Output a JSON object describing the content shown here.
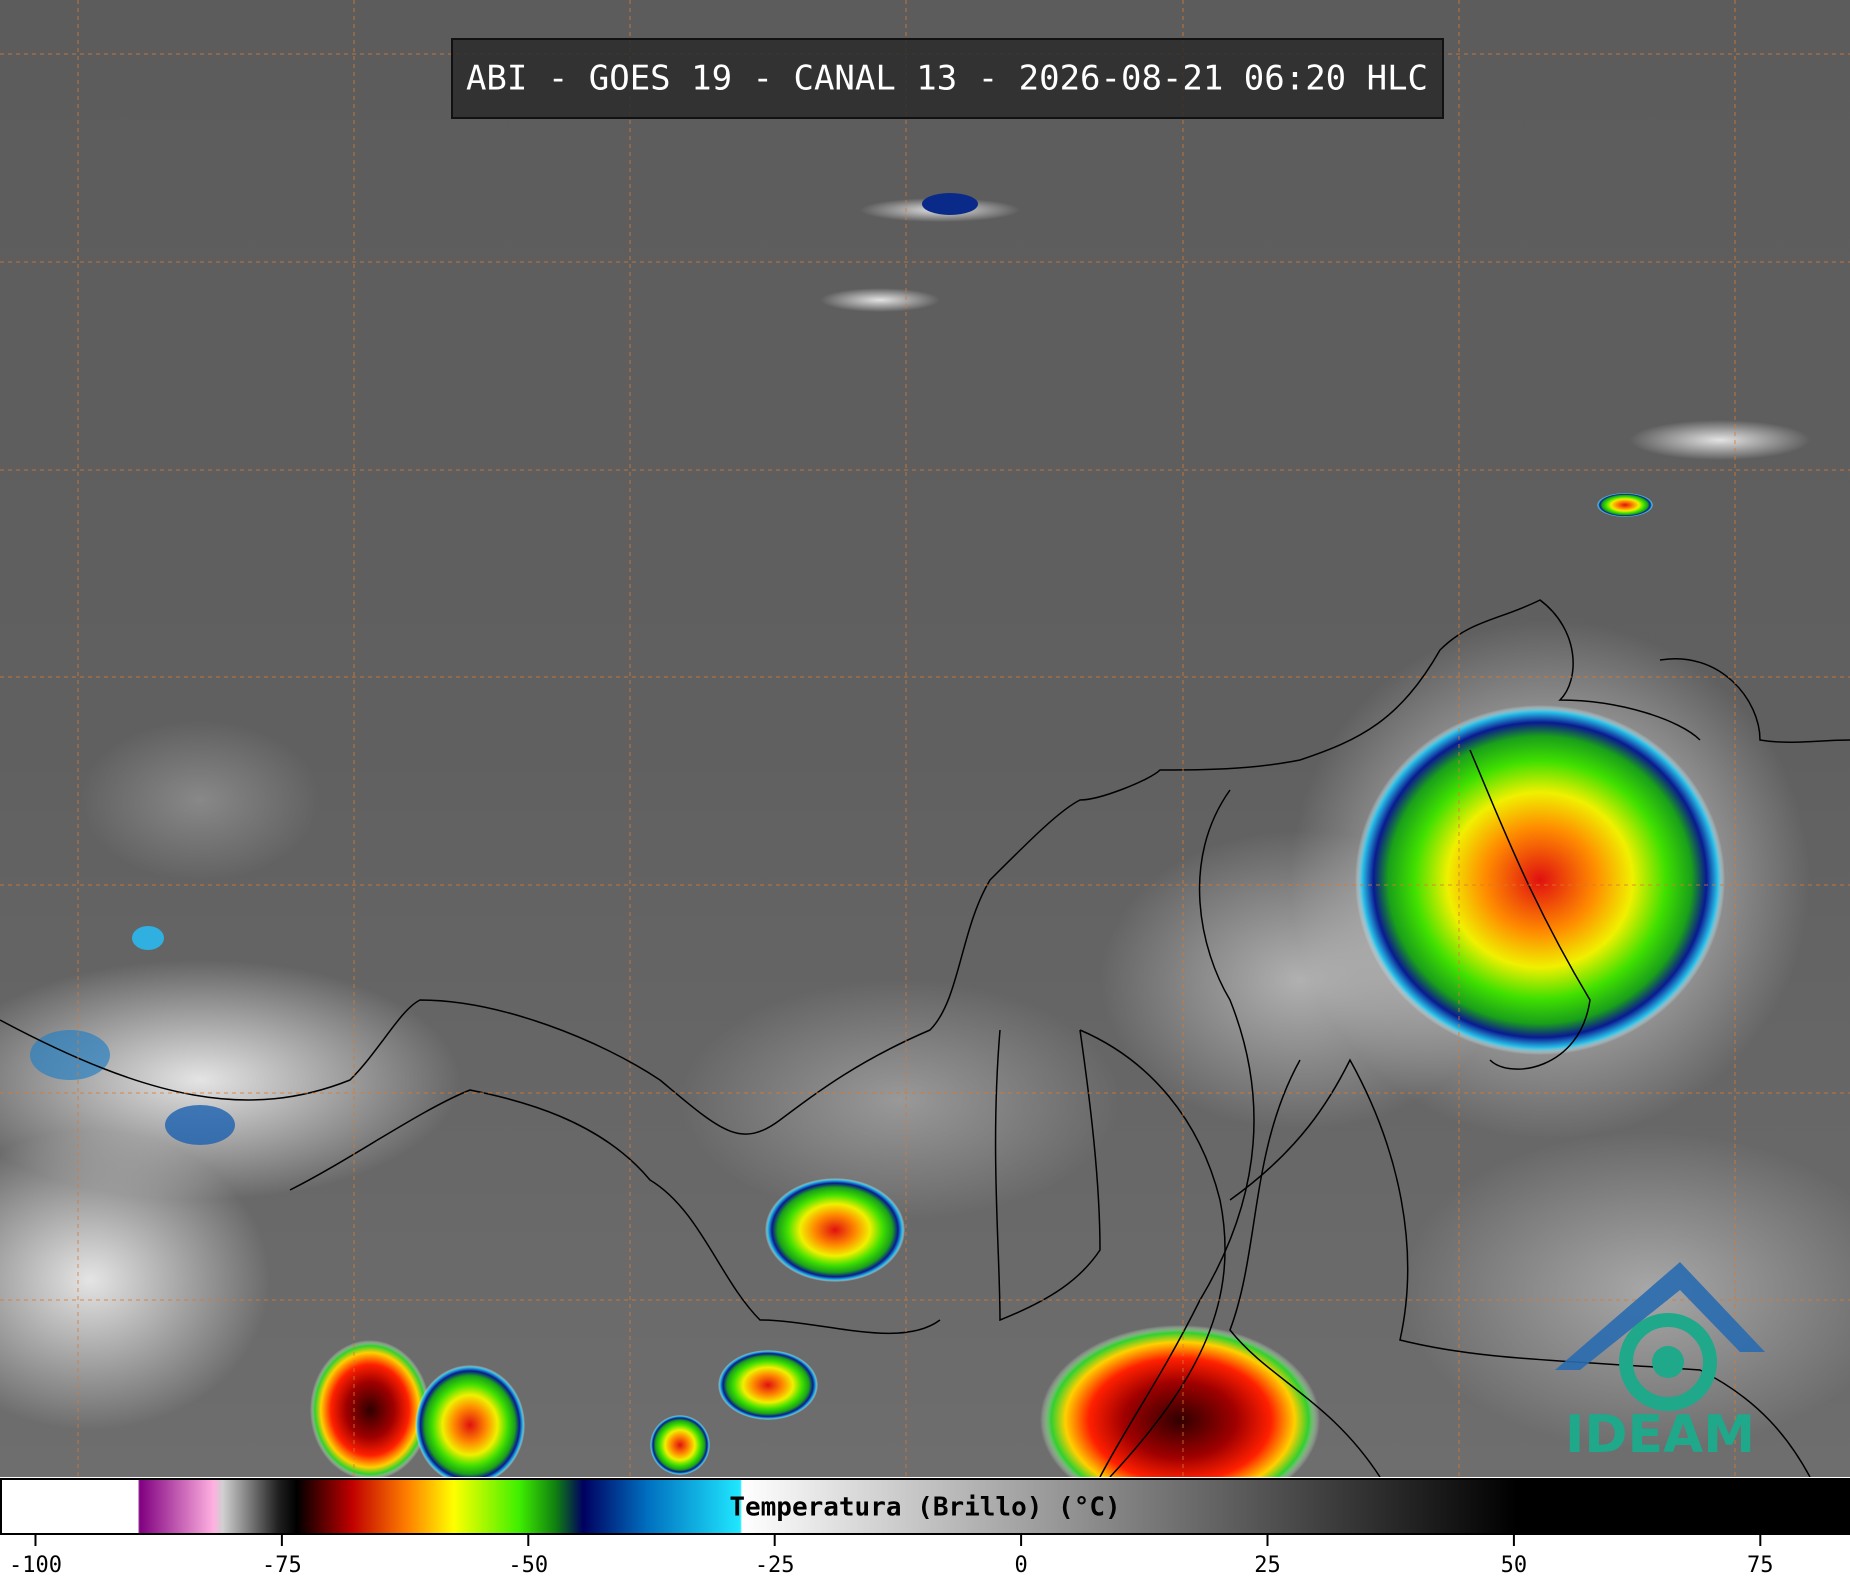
{
  "title": "ABI - GOES 19 - CANAL 13 - 2026-08-21 06:20 HLC",
  "logo": "IDEAM",
  "colorbar": {
    "label": "Temperatura (Brillo) (°C)",
    "lim": [
      -103.6,
      84.1
    ],
    "ticks": [
      -100,
      -75,
      -50,
      -25,
      0,
      25,
      50,
      75
    ]
  }
}
